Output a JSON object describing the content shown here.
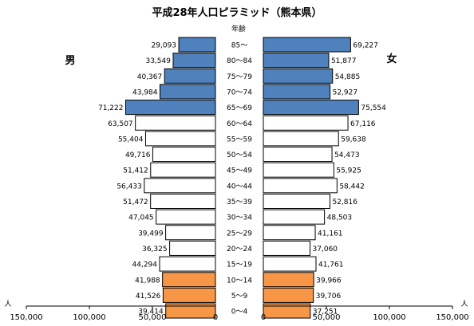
{
  "chart_data": {
    "type": "bar",
    "title": "平成28年人口ピラミッド（熊本県）",
    "age_header": "年齢",
    "male_label": "男",
    "female_label": "女",
    "unit_label": "人",
    "categories": [
      "85～",
      "80～84",
      "75～79",
      "70～74",
      "65～69",
      "60～64",
      "55～59",
      "50～54",
      "45～49",
      "40～44",
      "35～39",
      "30～34",
      "25～29",
      "20～24",
      "15～19",
      "10～14",
      "5～9",
      "0～4"
    ],
    "series": [
      {
        "name": "男",
        "values": [
          29093,
          33549,
          40367,
          43984,
          71222,
          63507,
          55404,
          49716,
          51412,
          56433,
          51472,
          47045,
          39499,
          36325,
          44294,
          41988,
          41526,
          39414
        ],
        "labels": [
          "29,093",
          "33,549",
          "40,367",
          "43,984",
          "71,222",
          "63,507",
          "55,404",
          "49,716",
          "51,412",
          "56,433",
          "51,472",
          "47,045",
          "39,499",
          "36,325",
          "44,294",
          "41,988",
          "41,526",
          "39,414"
        ]
      },
      {
        "name": "女",
        "values": [
          69227,
          51877,
          54885,
          52927,
          75554,
          67116,
          59638,
          54473,
          55925,
          58442,
          52816,
          48503,
          41161,
          37060,
          41761,
          39966,
          39706,
          37251
        ],
        "labels": [
          "69,227",
          "51,877",
          "54,885",
          "52,927",
          "75,554",
          "67,116",
          "59,638",
          "54,473",
          "55,925",
          "58,442",
          "52,816",
          "48,503",
          "41,161",
          "37,060",
          "41,761",
          "39,966",
          "39,706",
          "37,251"
        ]
      }
    ],
    "groups": [
      "elderly",
      "elderly",
      "elderly",
      "elderly",
      "elderly",
      "working",
      "working",
      "working",
      "working",
      "working",
      "working",
      "working",
      "working",
      "working",
      "working",
      "young",
      "young",
      "young"
    ],
    "colors": {
      "elderly": "#4f81bd",
      "working": "#ffffff",
      "young": "#f79646",
      "outline": "#000000"
    },
    "x_ticks": [
      {
        "value": 150000,
        "label": "150,000"
      },
      {
        "value": 100000,
        "label": "100,000"
      },
      {
        "value": 50000,
        "label": "50,000"
      },
      {
        "value": 0,
        "label": "0"
      }
    ],
    "xlim": [
      0,
      150000
    ]
  }
}
